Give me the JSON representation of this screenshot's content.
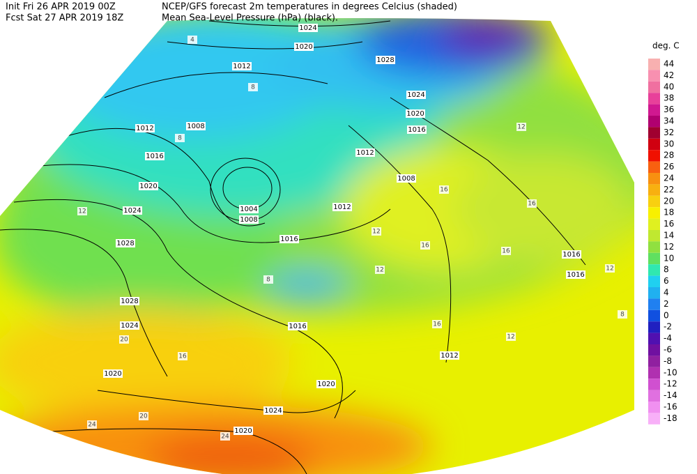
{
  "header": {
    "init": "Init  Fri 26 APR 2019 00Z",
    "forecast": "Fcst Sat 27 APR 2019 18Z",
    "title_line1": "NCEP/GFS forecast 2m temperatures in degrees Celcius (shaded)",
    "title_line2": "Mean Sea-Level Pressure (hPa) (black)."
  },
  "legend": {
    "title": "deg. C",
    "items": [
      {
        "label": "44",
        "color": "#f8b0b0"
      },
      {
        "label": "42",
        "color": "#f890b0"
      },
      {
        "label": "40",
        "color": "#f070a0"
      },
      {
        "label": "38",
        "color": "#e8409a"
      },
      {
        "label": "36",
        "color": "#d01890"
      },
      {
        "label": "34",
        "color": "#b00070"
      },
      {
        "label": "32",
        "color": "#a00030"
      },
      {
        "label": "30",
        "color": "#d00010"
      },
      {
        "label": "28",
        "color": "#f01000"
      },
      {
        "label": "26",
        "color": "#f86010"
      },
      {
        "label": "24",
        "color": "#f89010"
      },
      {
        "label": "22",
        "color": "#f8b010"
      },
      {
        "label": "20",
        "color": "#f8d010"
      },
      {
        "label": "18",
        "color": "#f8f000"
      },
      {
        "label": "16",
        "color": "#e0f020"
      },
      {
        "label": "14",
        "color": "#c0e830"
      },
      {
        "label": "12",
        "color": "#90e040"
      },
      {
        "label": "10",
        "color": "#60e060"
      },
      {
        "label": "8",
        "color": "#30e8b0"
      },
      {
        "label": "6",
        "color": "#20d0f0"
      },
      {
        "label": "4",
        "color": "#20b0f0"
      },
      {
        "label": "2",
        "color": "#2080f0"
      },
      {
        "label": "0",
        "color": "#1050e0"
      },
      {
        "label": "-2",
        "color": "#2020c0"
      },
      {
        "label": "-4",
        "color": "#5010b0"
      },
      {
        "label": "-6",
        "color": "#7010a0"
      },
      {
        "label": "-8",
        "color": "#9020a0"
      },
      {
        "label": "-10",
        "color": "#b030b0"
      },
      {
        "label": "-12",
        "color": "#d050d0"
      },
      {
        "label": "-14",
        "color": "#e070e0"
      },
      {
        "label": "-16",
        "color": "#f090f0"
      },
      {
        "label": "-18",
        "color": "#f8b0f8"
      }
    ]
  },
  "isobar_labels": [
    "1024",
    "1020",
    "1012",
    "1028",
    "1024",
    "1020",
    "1016",
    "1008",
    "1012",
    "1016",
    "1020",
    "1024",
    "1028",
    "1004",
    "1008",
    "1012",
    "1012",
    "1008",
    "1016",
    "1016",
    "1016",
    "1028",
    "1024",
    "1020",
    "1016",
    "1020",
    "1024",
    "1020",
    "1012"
  ],
  "temperature_labels": [
    "4",
    "8",
    "8",
    "12",
    "16",
    "16",
    "12",
    "16",
    "12",
    "16",
    "8",
    "12",
    "20",
    "16",
    "24",
    "24",
    "20",
    "16",
    "12",
    "8",
    "12"
  ]
}
